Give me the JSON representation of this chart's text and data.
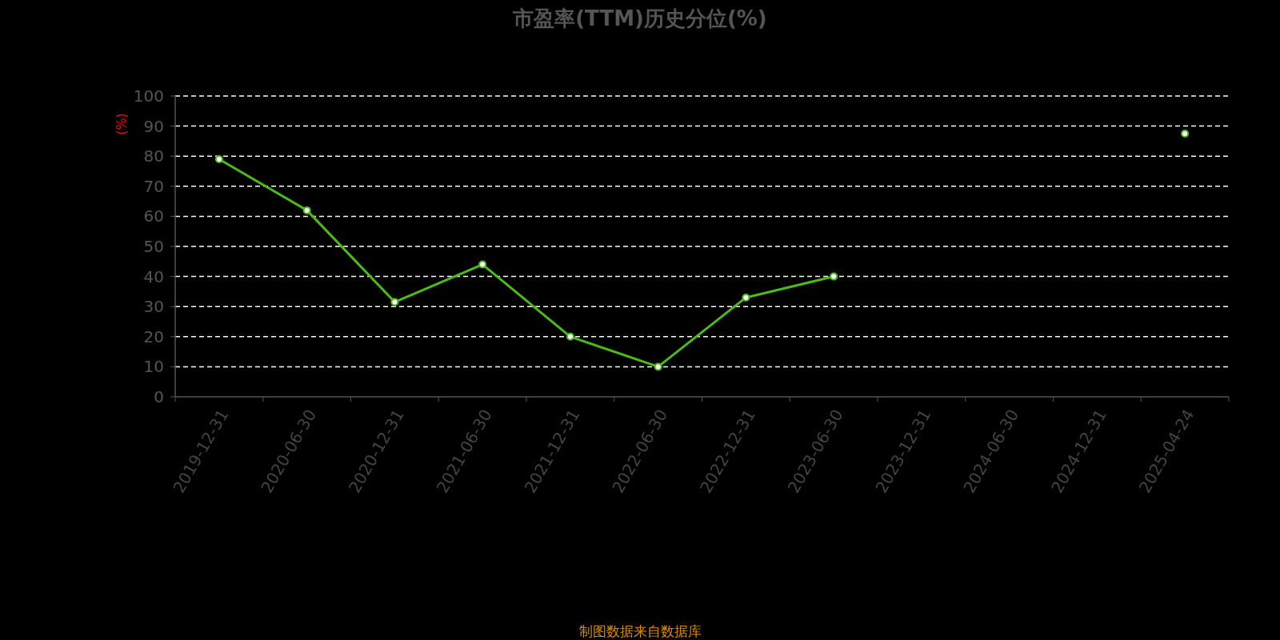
{
  "chart_data": {
    "type": "line",
    "title": "市盈率(TTM)历史分位(%)",
    "ylabel": "(%)",
    "annotations": [
      "制图数据来自数据库"
    ],
    "categories": [
      "2019-12-31",
      "2020-06-30",
      "2020-12-31",
      "2021-06-30",
      "2021-12-31",
      "2022-06-30",
      "2022-12-31",
      "2023-06-30",
      "2023-12-31",
      "2024-06-30",
      "2024-12-31",
      "2025-04-24"
    ],
    "series": [
      {
        "color": "#4cbb17",
        "values": [
          79,
          62,
          31.5,
          44,
          20,
          10,
          33,
          40,
          null,
          null,
          null,
          87.5
        ]
      }
    ],
    "ylim": [
      0,
      100
    ],
    "yticks": [
      0,
      10,
      20,
      30,
      40,
      50,
      60,
      70,
      80,
      90,
      100
    ],
    "grid": "y",
    "marker": "circle"
  }
}
